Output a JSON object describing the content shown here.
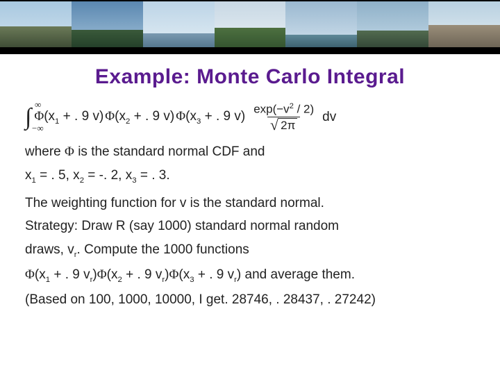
{
  "title": {
    "text": "Example: Monte Carlo Integral",
    "color": "#5a1b8f"
  },
  "banner": {
    "border_color": "#000000",
    "panels": [
      {
        "sky": "linear-gradient(#a8c8e0,#d0e2ee)",
        "ground": "linear-gradient(#6b7a58,#3f4d36)",
        "ground_h": "45%"
      },
      {
        "sky": "linear-gradient(#5a87b0,#a0c0d8)",
        "ground": "linear-gradient(#3a5a3a,#24402a)",
        "ground_h": "38%"
      },
      {
        "sky": "linear-gradient(#bcd4e6,#e0ecf4)",
        "ground": "linear-gradient(#7a99b0,#55788f)",
        "ground_h": "30%"
      },
      {
        "sky": "linear-gradient(#c8d8e4,#e6eef4)",
        "ground": "linear-gradient(#4d7040,#355530)",
        "ground_h": "42%"
      },
      {
        "sky": "linear-gradient(#9ab8d0,#cfe0ec)",
        "ground": "linear-gradient(#5f8898,#3d6270)",
        "ground_h": "28%"
      },
      {
        "sky": "linear-gradient(#8eb0c8,#c2d8e6)",
        "ground": "linear-gradient(#526b50,#344838)",
        "ground_h": "36%"
      },
      {
        "sky": "linear-gradient(#b8d0e0,#e2ecf2)",
        "ground": "linear-gradient(#9a8e7a,#6e6556)",
        "ground_h": "48%"
      }
    ]
  },
  "formula": {
    "int_upper": "∞",
    "int_lower": "−∞",
    "term1": {
      "phi": "Φ",
      "inside_pre": "(x",
      "sub": "1",
      "inside_post": " + . 9 v)"
    },
    "term2": {
      "phi": "Φ",
      "inside_pre": "(x",
      "sub": "2",
      "inside_post": " + . 9 v)"
    },
    "term3": {
      "phi": "Φ",
      "inside_pre": "(x",
      "sub": "3",
      "inside_post": " + . 9 v)"
    },
    "frac_num_pre": "exp(−v",
    "frac_num_sup": "2",
    "frac_num_post": " / 2)",
    "frac_den_sqrt": "2π",
    "trail": " dv"
  },
  "lines": {
    "where_pre": "where ",
    "where_phi": "Φ",
    "where_post": " is the standard normal CDF and",
    "xvals_a": "x",
    "xvals_a_sub": "1",
    "xvals_a_post": " = . 5, x",
    "xvals_b_sub": "2",
    "xvals_b_post": " = -. 2, x",
    "xvals_c_sub": "3",
    "xvals_c_post": " = . 3.",
    "weighting": "The weighting function for v is the standard normal.",
    "strategy1": "Strategy:  Draw R (say 1000) standard normal random",
    "strategy2_pre": "draws, v",
    "strategy2_sub": "r",
    "strategy2_post": ".  Compute the 1000 functions",
    "fn_t1_pre": "(x",
    "fn_t1_sub": "1",
    "fn_t1_mid": " + . 9 v",
    "fn_t1_sub2": "r",
    "fn_t1_post": ")",
    "fn_t2_pre": "(x",
    "fn_t2_sub": "2",
    "fn_t2_mid": " + . 9 v",
    "fn_t2_sub2": "r",
    "fn_t2_post": ")",
    "fn_t3_pre": "(x",
    "fn_t3_sub": "3",
    "fn_t3_mid": " + . 9 v",
    "fn_t3_sub2": "r",
    "fn_t3_post": ")",
    "fn_tail": " and average them.",
    "results": "(Based on 100, 1000, 10000, I get. 28746, . 28437, . 27242)"
  }
}
